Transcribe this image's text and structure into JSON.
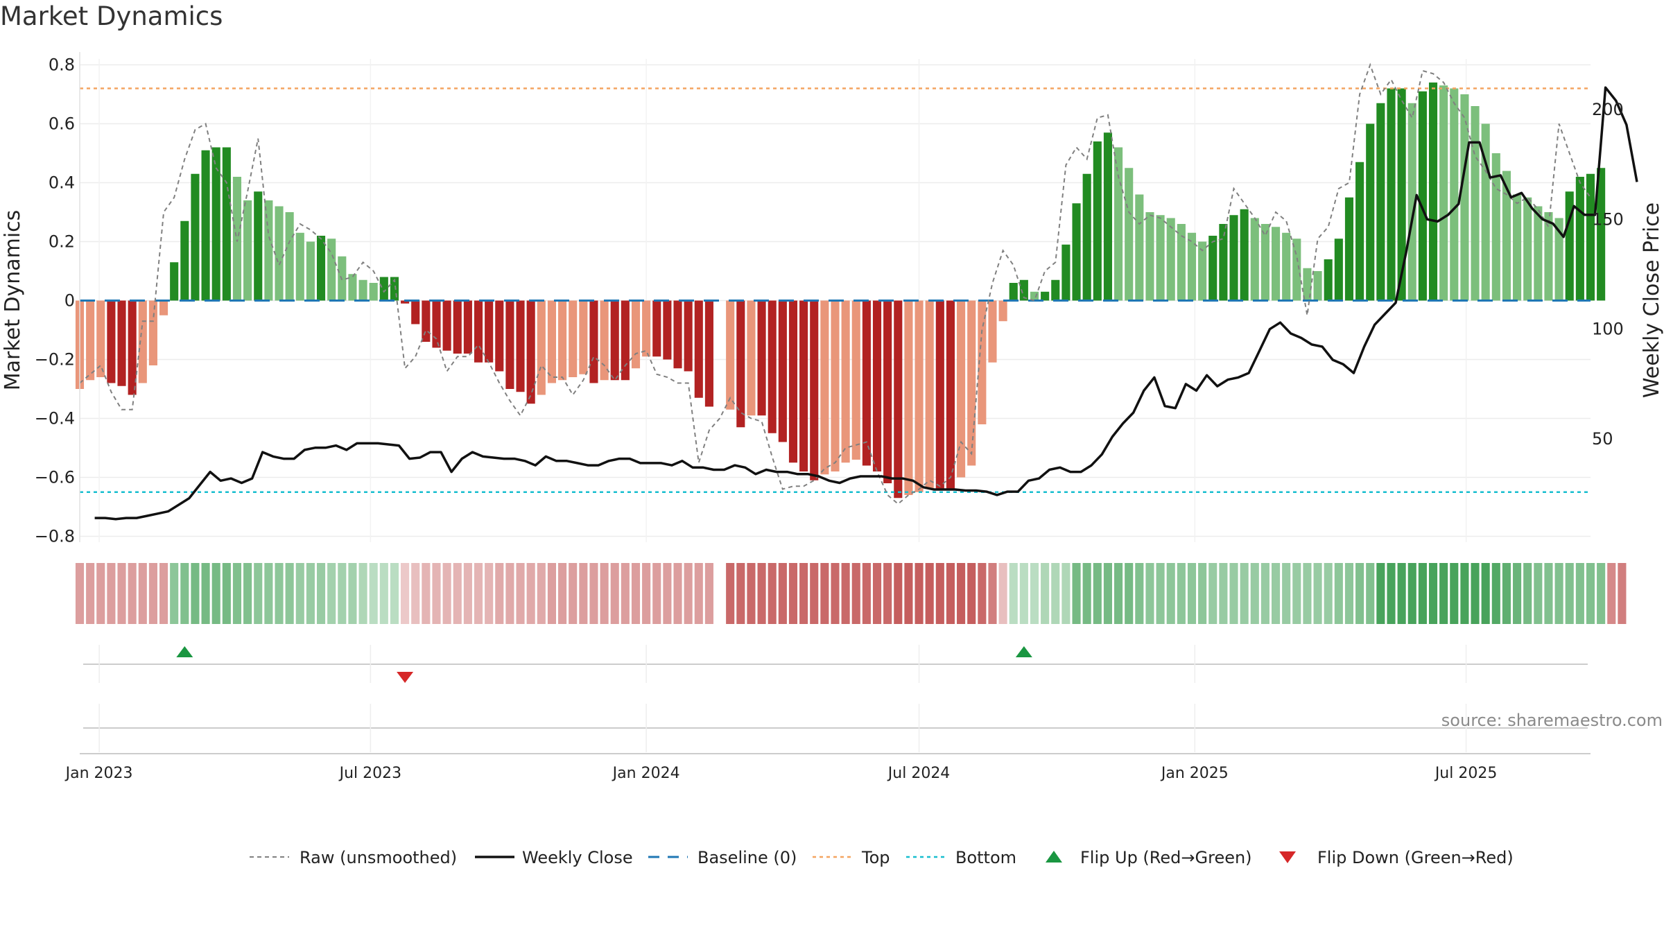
{
  "chart_data": {
    "type": "bar",
    "title": "Market Dynamics",
    "ylabel": "Market Dynamics",
    "y2label": "Weekly Close Price",
    "ylim": [
      -0.82,
      0.82
    ],
    "y2lim": [
      3,
      223
    ],
    "yticks": [
      "0.8",
      "0.6",
      "0.4",
      "0.2",
      "0",
      "−0.2",
      "−0.4",
      "−0.6",
      "−0.8"
    ],
    "y2ticks": [
      "200",
      "150",
      "100",
      "50"
    ],
    "x_start": "2022-12-19",
    "x_end": "2025-09-22",
    "xticks": [
      {
        "date": "2023-01-01",
        "label": "Jan 2023"
      },
      {
        "date": "2023-07-01",
        "label": "Jul 2023"
      },
      {
        "date": "2024-01-01",
        "label": "Jan 2024"
      },
      {
        "date": "2024-07-01",
        "label": "Jul 2024"
      },
      {
        "date": "2025-01-01",
        "label": "Jan 2025"
      },
      {
        "date": "2025-07-01",
        "label": "Jul 2025"
      }
    ],
    "top": 0.72,
    "bottom": -0.65,
    "baseline": 0,
    "colors": {
      "strong_up": "#228B22",
      "weak_up": "#7CBF7C",
      "strong_down": "#B22222",
      "weak_down": "#E9967A",
      "raw": "#808080",
      "close": "#111111",
      "baseline": "#1f77b4",
      "top": "#F4A460",
      "bottom": "#17becf",
      "flip_up": "#1a9641",
      "flip_down": "#d62728"
    },
    "momentum": {
      "start": "2022-12-19",
      "values": [
        -0.3,
        -0.27,
        -0.26,
        -0.28,
        -0.29,
        -0.32,
        -0.28,
        -0.22,
        -0.05,
        0.13,
        0.27,
        0.43,
        0.51,
        0.52,
        0.52,
        0.42,
        0.34,
        0.37,
        0.34,
        0.32,
        0.3,
        0.23,
        0.2,
        0.22,
        0.21,
        0.15,
        0.09,
        0.07,
        0.06,
        0.08,
        0.08,
        -0.01,
        -0.08,
        -0.14,
        -0.16,
        -0.17,
        -0.18,
        -0.18,
        -0.21,
        -0.21,
        -0.24,
        -0.3,
        -0.31,
        -0.35,
        -0.32,
        -0.28,
        -0.27,
        -0.26,
        -0.25,
        -0.28,
        -0.27,
        -0.27,
        -0.27,
        -0.23,
        -0.19,
        -0.19,
        -0.2,
        -0.23,
        -0.24,
        -0.33,
        -0.36,
        null,
        -0.37,
        -0.43,
        -0.39,
        -0.39,
        -0.45,
        -0.48,
        -0.55,
        -0.58,
        -0.61,
        -0.59,
        -0.58,
        -0.55,
        -0.54,
        -0.56,
        -0.58,
        -0.62,
        -0.67,
        -0.66,
        -0.65,
        -0.64,
        -0.64,
        -0.64,
        -0.6,
        -0.56,
        -0.42,
        -0.21,
        -0.07,
        0.06,
        0.07,
        0.03,
        0.03,
        0.07,
        0.19,
        0.33,
        0.43,
        0.54,
        0.57,
        0.52,
        0.45,
        0.36,
        0.3,
        0.29,
        0.28,
        0.26,
        0.23,
        0.2,
        0.22,
        0.26,
        0.29,
        0.31,
        0.28,
        0.26,
        0.25,
        0.23,
        0.21,
        0.11,
        0.1,
        0.14,
        0.21,
        0.35,
        0.47,
        0.6,
        0.67,
        0.72,
        0.72,
        0.67,
        0.71,
        0.74,
        0.73,
        0.72,
        0.7,
        0.66,
        0.6,
        0.5,
        0.44,
        0.36,
        0.35,
        0.32,
        0.3,
        0.28,
        0.37,
        0.42,
        0.43,
        0.45
      ]
    },
    "raw": {
      "start": "2022-12-19",
      "values": [
        -0.28,
        -0.25,
        -0.22,
        -0.31,
        -0.37,
        -0.37,
        -0.07,
        -0.07,
        0.3,
        0.35,
        0.48,
        0.58,
        0.6,
        0.45,
        0.4,
        0.2,
        0.37,
        0.55,
        0.22,
        0.12,
        0.2,
        0.26,
        0.24,
        0.21,
        0.16,
        0.07,
        0.08,
        0.13,
        0.1,
        0.03,
        0.07,
        -0.23,
        -0.19,
        -0.1,
        -0.13,
        -0.24,
        -0.19,
        -0.19,
        -0.15,
        -0.21,
        -0.28,
        -0.34,
        -0.39,
        -0.32,
        -0.22,
        -0.26,
        -0.26,
        -0.32,
        -0.27,
        -0.19,
        -0.22,
        -0.27,
        -0.22,
        -0.18,
        -0.17,
        -0.25,
        -0.26,
        -0.28,
        -0.28,
        -0.55,
        -0.44,
        -0.4,
        -0.33,
        -0.38,
        -0.4,
        -0.41,
        -0.53,
        -0.64,
        -0.63,
        -0.63,
        -0.61,
        -0.57,
        -0.55,
        -0.5,
        -0.49,
        -0.48,
        -0.58,
        -0.66,
        -0.69,
        -0.66,
        -0.64,
        -0.61,
        -0.63,
        -0.6,
        -0.48,
        -0.52,
        -0.1,
        0.06,
        0.17,
        0.12,
        0.01,
        0.0,
        0.1,
        0.13,
        0.46,
        0.52,
        0.48,
        0.62,
        0.63,
        0.42,
        0.3,
        0.26,
        0.29,
        0.28,
        0.25,
        0.22,
        0.2,
        0.17,
        0.2,
        0.21,
        0.38,
        0.33,
        0.28,
        0.22,
        0.3,
        0.27,
        0.15,
        -0.05,
        0.21,
        0.25,
        0.38,
        0.4,
        0.7,
        0.8,
        0.7,
        0.75,
        0.68,
        0.62,
        0.78,
        0.77,
        0.74,
        0.67,
        0.62,
        0.49,
        0.44,
        0.38,
        0.36,
        0.33,
        0.35,
        0.31,
        0.25,
        0.6,
        0.5,
        0.4,
        0.35
      ]
    },
    "close": {
      "start": "2022-12-29",
      "values": [
        14,
        14,
        13.5,
        14,
        14,
        15,
        16,
        17,
        20,
        23,
        29,
        35,
        31,
        32,
        30,
        32,
        44,
        42,
        41,
        41,
        45,
        46,
        46,
        47,
        45,
        48,
        48,
        48,
        47.5,
        47,
        41,
        41.5,
        44,
        44,
        35,
        41,
        44,
        42,
        41.5,
        41,
        41,
        40,
        38,
        42,
        40,
        40,
        39,
        38,
        38,
        40,
        41,
        41,
        39,
        39,
        39,
        38,
        40,
        37,
        37,
        36,
        36,
        38,
        37,
        34,
        36,
        35,
        35,
        34,
        34,
        33,
        31,
        30,
        32,
        33,
        33,
        33,
        32,
        32,
        31,
        28,
        27,
        27,
        27,
        26.5,
        26.5,
        26,
        24.5,
        26,
        26,
        31,
        32,
        36,
        37,
        35,
        35,
        38,
        43,
        51,
        57,
        62,
        72,
        78,
        65,
        64,
        75,
        72,
        79,
        74,
        77,
        78,
        80,
        90,
        100,
        103,
        98,
        96,
        93,
        92,
        86,
        84,
        80,
        92,
        102,
        107,
        112,
        135,
        161,
        150,
        149,
        152,
        157,
        185,
        185,
        169,
        170,
        160,
        162,
        155,
        150,
        148,
        142,
        156,
        152,
        152,
        210,
        204,
        193,
        167
      ]
    },
    "regime_strip": {
      "start": "2022-12-19",
      "shades": [
        0.45,
        0.45,
        0.45,
        0.45,
        0.45,
        0.45,
        0.45,
        0.45,
        0.45,
        0.5,
        0.55,
        0.6,
        0.6,
        0.6,
        0.6,
        0.55,
        0.55,
        0.5,
        0.5,
        0.5,
        0.5,
        0.45,
        0.45,
        0.45,
        0.4,
        0.4,
        0.4,
        0.35,
        0.3,
        0.3,
        0.3,
        0.25,
        0.3,
        0.35,
        0.35,
        0.35,
        0.35,
        0.35,
        0.35,
        0.35,
        0.4,
        0.4,
        0.4,
        0.4,
        0.4,
        0.45,
        0.45,
        0.45,
        0.45,
        0.45,
        0.45,
        0.45,
        0.45,
        0.45,
        0.45,
        0.45,
        0.45,
        0.45,
        0.45,
        0.45,
        0.45,
        null,
        0.7,
        0.7,
        0.7,
        0.7,
        0.7,
        0.7,
        0.7,
        0.7,
        0.7,
        0.7,
        0.7,
        0.7,
        0.7,
        0.7,
        0.7,
        0.7,
        0.75,
        0.75,
        0.75,
        0.75,
        0.75,
        0.75,
        0.75,
        0.75,
        0.7,
        0.6,
        0.3,
        0.3,
        0.3,
        0.3,
        0.35,
        0.35,
        0.35,
        0.6,
        0.6,
        0.6,
        0.6,
        0.6,
        0.6,
        0.55,
        0.5,
        0.5,
        0.5,
        0.5,
        0.5,
        0.5,
        0.45,
        0.45,
        0.45,
        0.45,
        0.45,
        0.45,
        0.45,
        0.45,
        0.45,
        0.45,
        0.45,
        0.45,
        0.5,
        0.5,
        0.55,
        0.55,
        0.8,
        0.8,
        0.8,
        0.8,
        0.8,
        0.8,
        0.8,
        0.8,
        0.8,
        0.8,
        0.8,
        0.75,
        0.7,
        0.65,
        0.6,
        0.55,
        0.55,
        0.55,
        0.55,
        0.55,
        0.55,
        0.55,
        0.55,
        0.6
      ]
    },
    "flips": [
      {
        "date": "2023-02-27",
        "direction": "up"
      },
      {
        "date": "2023-07-24",
        "direction": "down"
      },
      {
        "date": "2024-09-09",
        "direction": "up"
      }
    ],
    "source": "source: sharemaestro.com",
    "legend": {
      "position": "bottom",
      "items": [
        {
          "label": "Raw (unsmoothed)",
          "style": "raw"
        },
        {
          "label": "Weekly Close",
          "style": "close"
        },
        {
          "label": "Baseline (0)",
          "style": "baseline"
        },
        {
          "label": "Top",
          "style": "top"
        },
        {
          "label": "Bottom",
          "style": "bottom"
        },
        {
          "label": "Flip Up (Red→Green)",
          "style": "flip_up"
        },
        {
          "label": "Flip Down (Green→Red)",
          "style": "flip_down"
        }
      ]
    }
  }
}
